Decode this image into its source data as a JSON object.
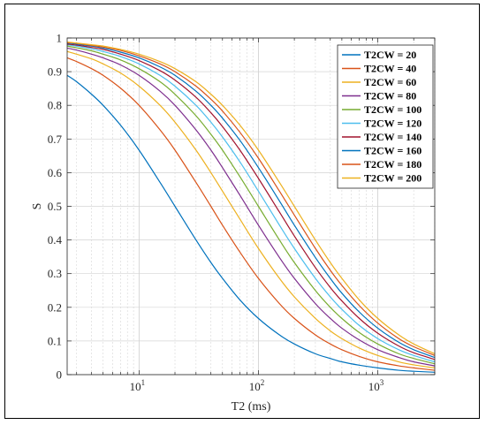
{
  "chart_data": {
    "type": "line",
    "xlabel": "T2 (ms)",
    "ylabel": "S",
    "xscale": "log",
    "xlim": [
      2.5,
      3000
    ],
    "ylim": [
      0,
      1
    ],
    "grid": true,
    "legend_position": "top-right",
    "x_tick_labels": [
      {
        "value": 10,
        "base": "10",
        "exp": "1"
      },
      {
        "value": 100,
        "base": "10",
        "exp": "2"
      },
      {
        "value": 1000,
        "base": "10",
        "exp": "3"
      }
    ],
    "y_ticks": [
      0,
      0.1,
      0.2,
      0.3,
      0.4,
      0.5,
      0.6,
      0.7,
      0.8,
      0.9,
      1
    ],
    "y_tick_labels": [
      "0",
      "0.1",
      "0.2",
      "0.3",
      "0.4",
      "0.5",
      "0.6",
      "0.7",
      "0.8",
      "0.9",
      "1"
    ],
    "x": [
      2.5,
      3,
      4,
      5,
      7,
      10,
      15,
      20,
      30,
      40,
      50,
      70,
      100,
      150,
      200,
      300,
      400,
      500,
      700,
      1000,
      1500,
      2000,
      3000
    ],
    "series": [
      {
        "name": "T2CW = 20",
        "color": "#0072BD",
        "values": [
          0.889,
          0.87,
          0.833,
          0.8,
          0.741,
          0.667,
          0.571,
          0.5,
          0.4,
          0.333,
          0.286,
          0.222,
          0.167,
          0.118,
          0.091,
          0.062,
          0.048,
          0.038,
          0.028,
          0.02,
          0.013,
          0.01,
          0.007
        ]
      },
      {
        "name": "T2CW = 40",
        "color": "#D95319",
        "values": [
          0.941,
          0.93,
          0.909,
          0.889,
          0.851,
          0.8,
          0.727,
          0.667,
          0.571,
          0.5,
          0.444,
          0.364,
          0.286,
          0.211,
          0.167,
          0.118,
          0.091,
          0.074,
          0.054,
          0.038,
          0.026,
          0.02,
          0.013
        ]
      },
      {
        "name": "T2CW = 60",
        "color": "#EDB120",
        "values": [
          0.96,
          0.952,
          0.938,
          0.923,
          0.896,
          0.857,
          0.8,
          0.75,
          0.667,
          0.6,
          0.545,
          0.462,
          0.375,
          0.286,
          0.231,
          0.167,
          0.13,
          0.107,
          0.079,
          0.057,
          0.038,
          0.029,
          0.02
        ]
      },
      {
        "name": "T2CW = 80",
        "color": "#7E2F8E",
        "values": [
          0.97,
          0.964,
          0.952,
          0.941,
          0.92,
          0.889,
          0.842,
          0.8,
          0.727,
          0.667,
          0.615,
          0.533,
          0.444,
          0.348,
          0.286,
          0.211,
          0.167,
          0.138,
          0.103,
          0.074,
          0.051,
          0.038,
          0.026
        ]
      },
      {
        "name": "T2CW = 100",
        "color": "#77AC30",
        "values": [
          0.976,
          0.971,
          0.962,
          0.952,
          0.935,
          0.909,
          0.87,
          0.833,
          0.769,
          0.714,
          0.667,
          0.588,
          0.5,
          0.4,
          0.333,
          0.25,
          0.2,
          0.167,
          0.125,
          0.091,
          0.062,
          0.048,
          0.032
        ]
      },
      {
        "name": "T2CW = 120",
        "color": "#4DBEEE",
        "values": [
          0.98,
          0.976,
          0.968,
          0.96,
          0.945,
          0.923,
          0.889,
          0.857,
          0.8,
          0.75,
          0.706,
          0.632,
          0.545,
          0.444,
          0.375,
          0.286,
          0.231,
          0.194,
          0.146,
          0.107,
          0.074,
          0.057,
          0.038
        ]
      },
      {
        "name": "T2CW = 140",
        "color": "#A2142F",
        "values": [
          0.982,
          0.979,
          0.972,
          0.966,
          0.952,
          0.933,
          0.903,
          0.875,
          0.824,
          0.778,
          0.737,
          0.667,
          0.583,
          0.483,
          0.412,
          0.318,
          0.259,
          0.219,
          0.167,
          0.123,
          0.085,
          0.065,
          0.045
        ]
      },
      {
        "name": "T2CW = 160",
        "color": "#0072BD",
        "values": [
          0.985,
          0.982,
          0.976,
          0.97,
          0.958,
          0.941,
          0.914,
          0.889,
          0.842,
          0.8,
          0.762,
          0.696,
          0.615,
          0.516,
          0.444,
          0.348,
          0.286,
          0.242,
          0.186,
          0.138,
          0.096,
          0.074,
          0.051
        ]
      },
      {
        "name": "T2CW = 180",
        "color": "#D95319",
        "values": [
          0.986,
          0.984,
          0.978,
          0.973,
          0.963,
          0.947,
          0.923,
          0.9,
          0.857,
          0.818,
          0.783,
          0.72,
          0.643,
          0.545,
          0.474,
          0.375,
          0.31,
          0.265,
          0.205,
          0.153,
          0.107,
          0.083,
          0.057
        ]
      },
      {
        "name": "T2CW = 200",
        "color": "#EDB120",
        "values": [
          0.988,
          0.985,
          0.98,
          0.976,
          0.966,
          0.952,
          0.93,
          0.909,
          0.87,
          0.833,
          0.8,
          0.741,
          0.667,
          0.571,
          0.5,
          0.4,
          0.333,
          0.286,
          0.222,
          0.167,
          0.118,
          0.091,
          0.062
        ]
      }
    ]
  }
}
